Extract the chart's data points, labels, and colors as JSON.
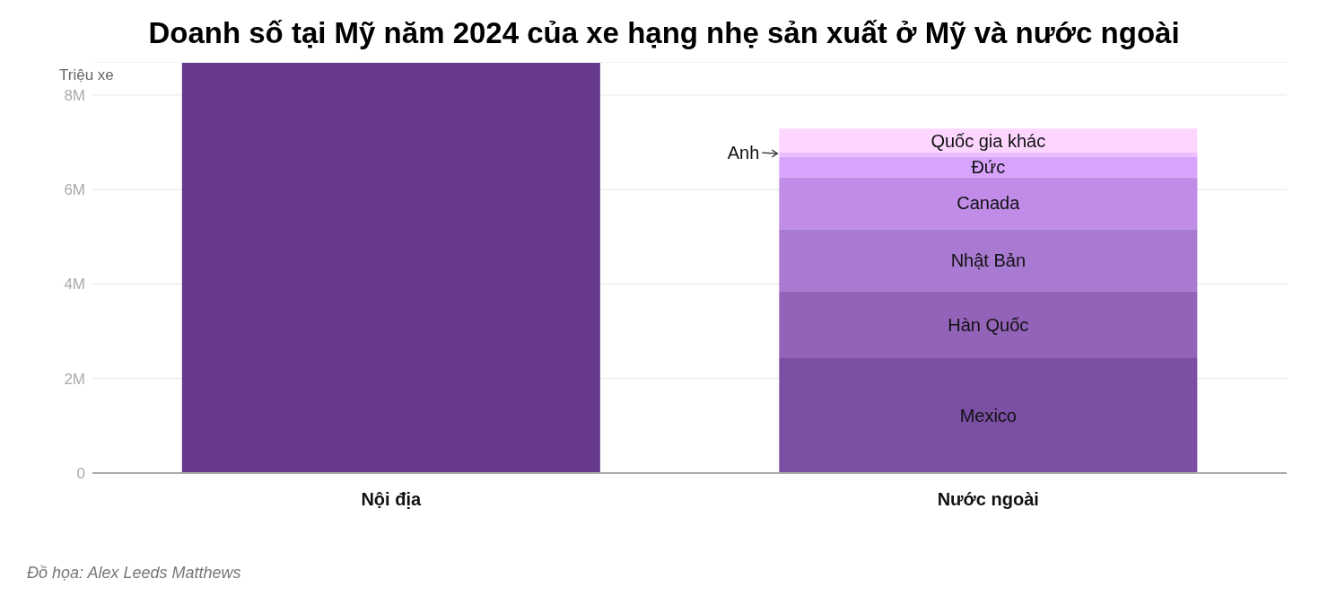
{
  "chart_data": {
    "type": "bar",
    "title": "Doanh số tại Mỹ năm 2024 của xe hạng nhẹ sản xuất ở Mỹ và nước ngoài",
    "ylabel": "Triệu xe",
    "categories": [
      "Nội địa",
      "Nước ngoài"
    ],
    "stacked": true,
    "series": [
      {
        "color": "#66398c",
        "values": [
          8.68,
          null
        ]
      },
      {
        "name": "Mexico",
        "color": "#7b4fa3",
        "values": [
          null,
          2.43
        ]
      },
      {
        "name": "Hàn Quốc",
        "color": "#9363b9",
        "values": [
          null,
          1.42
        ]
      },
      {
        "name": "Nhật Bản",
        "color": "#a87ad2",
        "values": [
          null,
          1.31
        ]
      },
      {
        "name": "Canada",
        "color": "#c08ce8",
        "values": [
          null,
          1.1
        ]
      },
      {
        "name": "Đức",
        "color": "#d8a3fc",
        "values": [
          null,
          0.43
        ]
      },
      {
        "name": "Anh",
        "color": "#ebbcff",
        "values": [
          null,
          0.09
        ]
      },
      {
        "name": "Quốc gia khác",
        "color": "#fdd6ff",
        "values": [
          null,
          0.51
        ]
      }
    ],
    "ylim": [
      0,
      8.7
    ],
    "yticks": [
      0,
      {
        "value": 2,
        "label": "2M"
      },
      {
        "value": 4,
        "label": "4M"
      },
      {
        "value": 6,
        "label": "6M"
      },
      {
        "value": 8,
        "label": "8M"
      }
    ],
    "grid": "y",
    "legend": false,
    "annotations": [
      "Đồ họa: Alex Leeds Matthews"
    ]
  }
}
